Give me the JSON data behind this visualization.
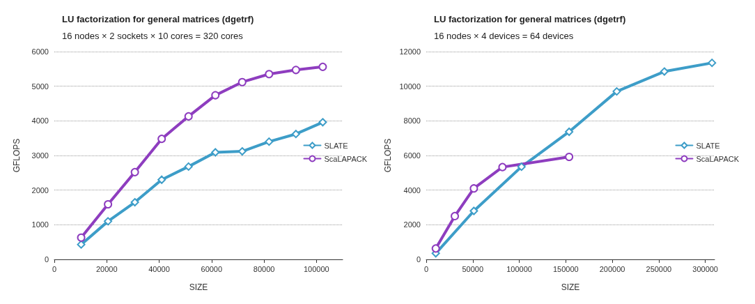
{
  "chart_data": [
    {
      "type": "line",
      "title": "LU factorization for general matrices (dgetrf)",
      "subtitle": "16 nodes × 2 sockets × 10 cores = 320 cores",
      "xlabel": "SIZE",
      "ylabel": "GFLOPS",
      "xlim": [
        0,
        110000
      ],
      "xticks": [
        0,
        20000,
        40000,
        60000,
        80000,
        100000
      ],
      "ylim": [
        0,
        6000
      ],
      "yticks": [
        0,
        1000,
        2000,
        3000,
        4000,
        5000,
        6000
      ],
      "grid": "y",
      "legend": "right",
      "line_style": "solid",
      "series": [
        {
          "name": "SLATE",
          "color": "#3d9dc8",
          "marker": "diamond",
          "x": [
            10240,
            20480,
            30720,
            40960,
            51200,
            61440,
            71680,
            81920,
            92160,
            102400
          ],
          "values": [
            430,
            1100,
            1650,
            2300,
            2680,
            3090,
            3120,
            3400,
            3620,
            3960
          ]
        },
        {
          "name": "ScaLAPACK",
          "color": "#8e3dbf",
          "marker": "circle",
          "x": [
            10240,
            20480,
            30720,
            40960,
            51200,
            61440,
            71680,
            81920,
            92160,
            102400
          ],
          "values": [
            630,
            1590,
            2520,
            3480,
            4130,
            4740,
            5120,
            5350,
            5470,
            5560
          ]
        }
      ]
    },
    {
      "type": "line",
      "title": "LU factorization for general matrices (dgetrf)",
      "subtitle": "16 nodes × 4 devices = 64 devices",
      "xlabel": "SIZE",
      "ylabel": "GFLOPS",
      "xlim": [
        0,
        310000
      ],
      "xticks": [
        0,
        50000,
        100000,
        150000,
        200000,
        250000,
        300000
      ],
      "ylim": [
        0,
        12000
      ],
      "yticks": [
        0,
        2000,
        4000,
        6000,
        8000,
        10000,
        12000
      ],
      "grid": "y",
      "legend": "right",
      "line_style": "solid",
      "series": [
        {
          "name": "SLATE",
          "color": "#3d9dc8",
          "marker": "diamond",
          "x": [
            10240,
            51200,
            102400,
            153600,
            204800,
            256000,
            307200
          ],
          "values": [
            350,
            2800,
            5350,
            7370,
            9700,
            10850,
            11350
          ]
        },
        {
          "name": "ScaLAPACK",
          "color": "#8e3dbf",
          "marker": "circle",
          "x": [
            10240,
            30720,
            51200,
            81920,
            153600
          ],
          "values": [
            630,
            2500,
            4100,
            5330,
            5920
          ]
        }
      ]
    }
  ]
}
